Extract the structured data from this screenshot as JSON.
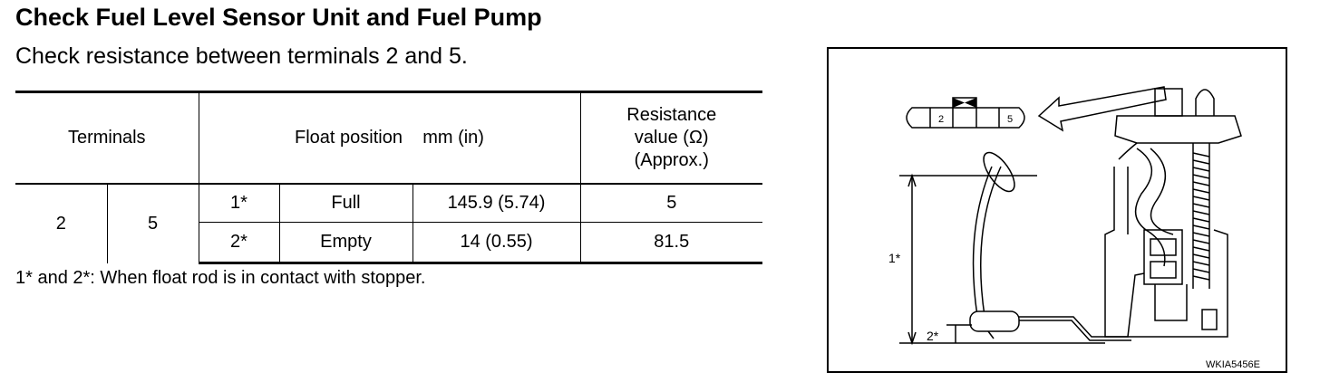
{
  "title": "Check Fuel Level Sensor Unit and Fuel Pump",
  "subtitle": "Check resistance between terminals 2 and 5.",
  "table": {
    "headers": {
      "terminals": "Terminals",
      "float_position": "Float position    mm (in)",
      "resistance_line1": "Resistance",
      "resistance_line2": "value  (Ω)",
      "resistance_line3": "(Approx.)"
    },
    "terminal_a": "2",
    "terminal_b": "5",
    "rows": [
      {
        "mark": "1*",
        "position": "Full",
        "value": "145.9 (5.74)",
        "resistance": "5"
      },
      {
        "mark": "2*",
        "position": "Empty",
        "value": "14 (0.55)",
        "resistance": "81.5"
      }
    ]
  },
  "note": "1* and 2*: When float rod is in contact with stopper.",
  "figure": {
    "connector_pin_a": "2",
    "connector_pin_b": "5",
    "label_upper": "1*",
    "label_lower": "2*",
    "figure_code": "WKIA5456E"
  }
}
